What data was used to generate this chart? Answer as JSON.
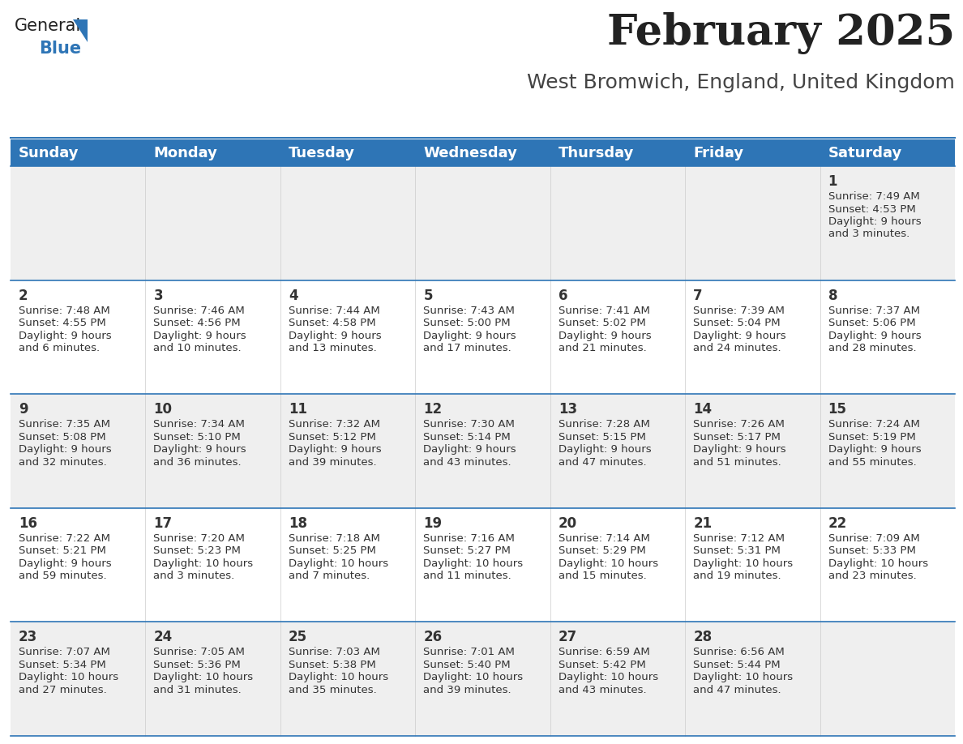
{
  "title": "February 2025",
  "subtitle": "West Bromwich, England, United Kingdom",
  "header_bg": "#2E75B6",
  "header_text_color": "#FFFFFF",
  "day_names": [
    "Sunday",
    "Monday",
    "Tuesday",
    "Wednesday",
    "Thursday",
    "Friday",
    "Saturday"
  ],
  "row_bg_odd": "#EFEFEF",
  "row_bg_even": "#FFFFFF",
  "cell_text_color": "#333333",
  "title_color": "#222222",
  "subtitle_color": "#444444",
  "separator_color": "#2E75B6",
  "title_fontsize": 38,
  "subtitle_fontsize": 18,
  "header_fontsize": 13,
  "day_num_fontsize": 12,
  "cell_fontsize": 9.5,
  "logo_general_color": "#222222",
  "logo_blue_color": "#2E75B6",
  "logo_triangle_color": "#2E75B6",
  "days": [
    {
      "day": 1,
      "col": 6,
      "row": 0,
      "sunrise": "7:49 AM",
      "sunset": "4:53 PM",
      "daylight": "9 hours and 3 minutes."
    },
    {
      "day": 2,
      "col": 0,
      "row": 1,
      "sunrise": "7:48 AM",
      "sunset": "4:55 PM",
      "daylight": "9 hours and 6 minutes."
    },
    {
      "day": 3,
      "col": 1,
      "row": 1,
      "sunrise": "7:46 AM",
      "sunset": "4:56 PM",
      "daylight": "9 hours and 10 minutes."
    },
    {
      "day": 4,
      "col": 2,
      "row": 1,
      "sunrise": "7:44 AM",
      "sunset": "4:58 PM",
      "daylight": "9 hours and 13 minutes."
    },
    {
      "day": 5,
      "col": 3,
      "row": 1,
      "sunrise": "7:43 AM",
      "sunset": "5:00 PM",
      "daylight": "9 hours and 17 minutes."
    },
    {
      "day": 6,
      "col": 4,
      "row": 1,
      "sunrise": "7:41 AM",
      "sunset": "5:02 PM",
      "daylight": "9 hours and 21 minutes."
    },
    {
      "day": 7,
      "col": 5,
      "row": 1,
      "sunrise": "7:39 AM",
      "sunset": "5:04 PM",
      "daylight": "9 hours and 24 minutes."
    },
    {
      "day": 8,
      "col": 6,
      "row": 1,
      "sunrise": "7:37 AM",
      "sunset": "5:06 PM",
      "daylight": "9 hours and 28 minutes."
    },
    {
      "day": 9,
      "col": 0,
      "row": 2,
      "sunrise": "7:35 AM",
      "sunset": "5:08 PM",
      "daylight": "9 hours and 32 minutes."
    },
    {
      "day": 10,
      "col": 1,
      "row": 2,
      "sunrise": "7:34 AM",
      "sunset": "5:10 PM",
      "daylight": "9 hours and 36 minutes."
    },
    {
      "day": 11,
      "col": 2,
      "row": 2,
      "sunrise": "7:32 AM",
      "sunset": "5:12 PM",
      "daylight": "9 hours and 39 minutes."
    },
    {
      "day": 12,
      "col": 3,
      "row": 2,
      "sunrise": "7:30 AM",
      "sunset": "5:14 PM",
      "daylight": "9 hours and 43 minutes."
    },
    {
      "day": 13,
      "col": 4,
      "row": 2,
      "sunrise": "7:28 AM",
      "sunset": "5:15 PM",
      "daylight": "9 hours and 47 minutes."
    },
    {
      "day": 14,
      "col": 5,
      "row": 2,
      "sunrise": "7:26 AM",
      "sunset": "5:17 PM",
      "daylight": "9 hours and 51 minutes."
    },
    {
      "day": 15,
      "col": 6,
      "row": 2,
      "sunrise": "7:24 AM",
      "sunset": "5:19 PM",
      "daylight": "9 hours and 55 minutes."
    },
    {
      "day": 16,
      "col": 0,
      "row": 3,
      "sunrise": "7:22 AM",
      "sunset": "5:21 PM",
      "daylight": "9 hours and 59 minutes."
    },
    {
      "day": 17,
      "col": 1,
      "row": 3,
      "sunrise": "7:20 AM",
      "sunset": "5:23 PM",
      "daylight": "10 hours and 3 minutes."
    },
    {
      "day": 18,
      "col": 2,
      "row": 3,
      "sunrise": "7:18 AM",
      "sunset": "5:25 PM",
      "daylight": "10 hours and 7 minutes."
    },
    {
      "day": 19,
      "col": 3,
      "row": 3,
      "sunrise": "7:16 AM",
      "sunset": "5:27 PM",
      "daylight": "10 hours and 11 minutes."
    },
    {
      "day": 20,
      "col": 4,
      "row": 3,
      "sunrise": "7:14 AM",
      "sunset": "5:29 PM",
      "daylight": "10 hours and 15 minutes."
    },
    {
      "day": 21,
      "col": 5,
      "row": 3,
      "sunrise": "7:12 AM",
      "sunset": "5:31 PM",
      "daylight": "10 hours and 19 minutes."
    },
    {
      "day": 22,
      "col": 6,
      "row": 3,
      "sunrise": "7:09 AM",
      "sunset": "5:33 PM",
      "daylight": "10 hours and 23 minutes."
    },
    {
      "day": 23,
      "col": 0,
      "row": 4,
      "sunrise": "7:07 AM",
      "sunset": "5:34 PM",
      "daylight": "10 hours and 27 minutes."
    },
    {
      "day": 24,
      "col": 1,
      "row": 4,
      "sunrise": "7:05 AM",
      "sunset": "5:36 PM",
      "daylight": "10 hours and 31 minutes."
    },
    {
      "day": 25,
      "col": 2,
      "row": 4,
      "sunrise": "7:03 AM",
      "sunset": "5:38 PM",
      "daylight": "10 hours and 35 minutes."
    },
    {
      "day": 26,
      "col": 3,
      "row": 4,
      "sunrise": "7:01 AM",
      "sunset": "5:40 PM",
      "daylight": "10 hours and 39 minutes."
    },
    {
      "day": 27,
      "col": 4,
      "row": 4,
      "sunrise": "6:59 AM",
      "sunset": "5:42 PM",
      "daylight": "10 hours and 43 minutes."
    },
    {
      "day": 28,
      "col": 5,
      "row": 4,
      "sunrise": "6:56 AM",
      "sunset": "5:44 PM",
      "daylight": "10 hours and 47 minutes."
    }
  ]
}
